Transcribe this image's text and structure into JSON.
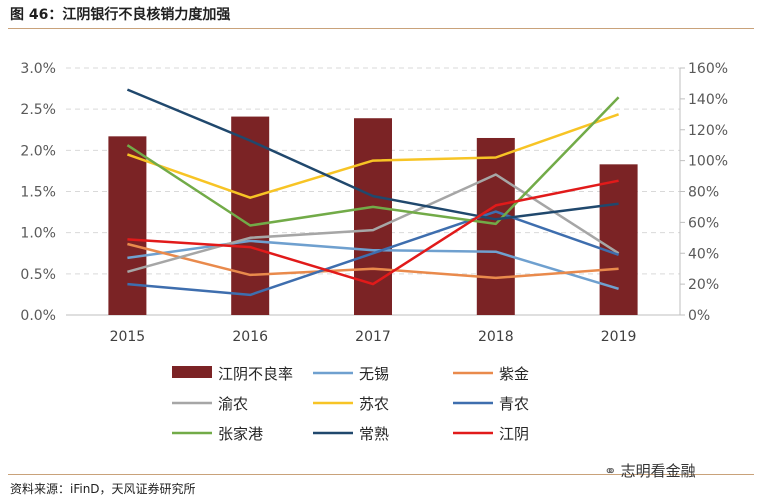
{
  "header": {
    "title": "图 46：江阴银行不良核销力度加强"
  },
  "footer": {
    "source": "资料来源：iFinD，天风证券研究所",
    "watermark": "志明看金融"
  },
  "chart_data": {
    "type": "bar",
    "categories": [
      "2015",
      "2016",
      "2017",
      "2018",
      "2019"
    ],
    "left_axis": {
      "ylim": [
        0,
        3.0
      ],
      "ticks": [
        "0.0%",
        "0.5%",
        "1.0%",
        "1.5%",
        "2.0%",
        "2.5%",
        "3.0%"
      ]
    },
    "right_axis": {
      "ylim": [
        0,
        160
      ],
      "ticks": [
        "0%",
        "20%",
        "40%",
        "60%",
        "80%",
        "100%",
        "120%",
        "140%",
        "160%"
      ]
    },
    "grid": true,
    "legend_position": "bottom",
    "bars": {
      "name": "江阴不良率",
      "color": "#7b2325",
      "axis": "left",
      "values": [
        2.17,
        2.41,
        2.39,
        2.15,
        1.83
      ]
    },
    "series": [
      {
        "name": "无锡",
        "color": "#6fa0cf",
        "axis": "right",
        "values": [
          37,
          48,
          42,
          41,
          17
        ]
      },
      {
        "name": "紫金",
        "color": "#e98a4c",
        "axis": "right",
        "values": [
          46,
          26,
          30,
          24,
          30
        ]
      },
      {
        "name": "渝农",
        "color": "#a6a6a6",
        "axis": "right",
        "values": [
          28,
          50,
          55,
          91,
          40
        ]
      },
      {
        "name": "苏农",
        "color": "#f7c425",
        "axis": "right",
        "values": [
          104,
          76,
          100,
          102,
          130
        ]
      },
      {
        "name": "青农",
        "color": "#3e6eae",
        "axis": "right",
        "values": [
          20,
          13,
          40,
          67,
          39
        ]
      },
      {
        "name": "张家港",
        "color": "#72ab48",
        "axis": "right",
        "values": [
          110,
          58,
          70,
          59,
          141
        ]
      },
      {
        "name": "常熟",
        "color": "#20486d",
        "axis": "right",
        "values": [
          146,
          113,
          77,
          62,
          72
        ]
      },
      {
        "name": "江阴",
        "color": "#e11a1a",
        "axis": "right",
        "values": [
          49,
          44,
          20,
          71,
          87
        ]
      }
    ]
  }
}
